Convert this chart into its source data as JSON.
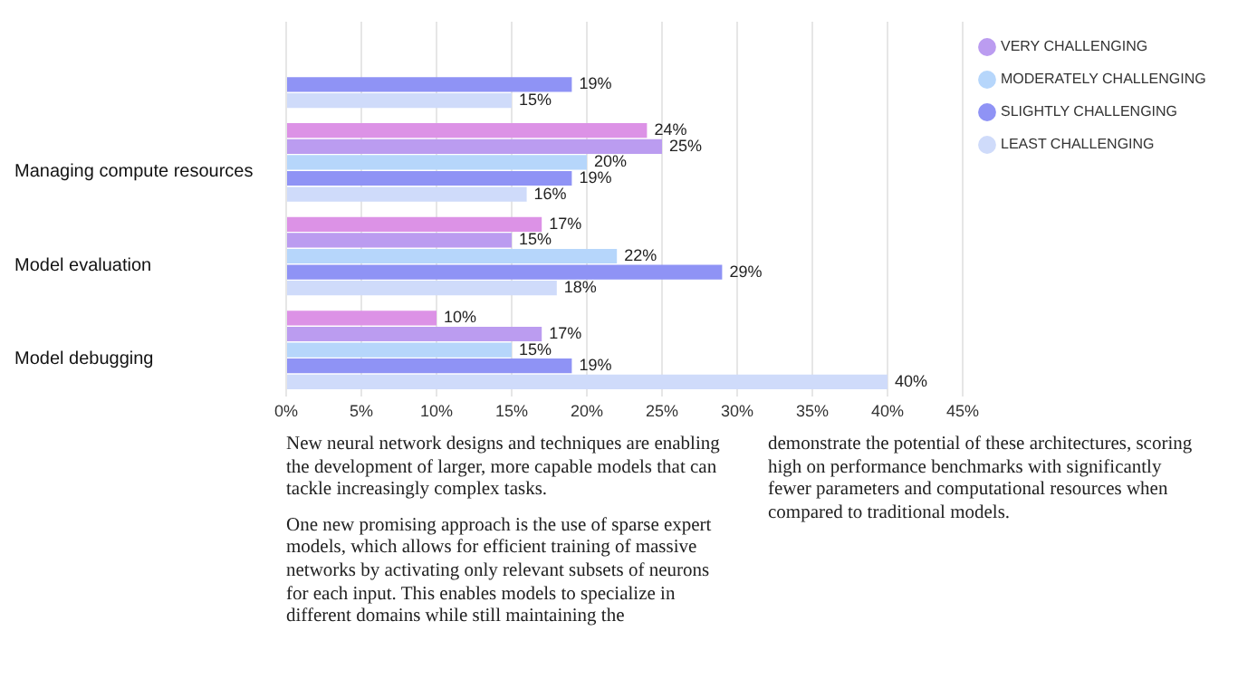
{
  "chart_data": {
    "type": "bar",
    "orientation": "horizontal",
    "categories": [
      null,
      "Managing compute resources",
      "Model evaluation",
      "Model debugging"
    ],
    "series": [
      {
        "color": "#dc92e6",
        "values": [
          null,
          24,
          17,
          10
        ],
        "value_labels": [
          null,
          "24%",
          "17%",
          "10%"
        ]
      },
      {
        "name": "VERY CHALLENGING",
        "color": "#bb9cf0",
        "values": [
          null,
          25,
          15,
          17
        ],
        "value_labels": [
          null,
          "25%",
          "15%",
          "17%"
        ]
      },
      {
        "name": "MODERATELY CHALLENGING",
        "color": "#b6d6fb",
        "values": [
          null,
          20,
          22,
          15
        ],
        "value_labels": [
          null,
          "20%",
          "22%",
          "15%"
        ]
      },
      {
        "name": "SLIGHTLY CHALLENGING",
        "color": "#8f93f5",
        "values": [
          19,
          19,
          29,
          19
        ],
        "value_labels": [
          "19%",
          "19%",
          "29%",
          "19%"
        ]
      },
      {
        "name": "LEAST CHALLENGING",
        "color": "#cfdbfa",
        "values": [
          15,
          16,
          18,
          40
        ],
        "value_labels": [
          "15%",
          "16%",
          "18%",
          "40%"
        ]
      }
    ],
    "xlim": [
      0,
      45
    ],
    "xticks": [
      {
        "value": 0,
        "label": "0%"
      },
      {
        "value": 5,
        "label": "5%"
      },
      {
        "value": 10,
        "label": "10%"
      },
      {
        "value": 15,
        "label": "15%"
      },
      {
        "value": 20,
        "label": "20%"
      },
      {
        "value": 25,
        "label": "25%"
      },
      {
        "value": 30,
        "label": "30%"
      },
      {
        "value": 35,
        "label": "35%"
      },
      {
        "value": 40,
        "label": "40%"
      },
      {
        "value": 45,
        "label": "45%"
      }
    ],
    "grid": "x",
    "legend": "top right",
    "annotations": [
      "New neural network designs and techniques are enabling the development of larger, more capable models that can tackle increasingly complex tasks.",
      "One new promising approach is the use of sparse expert models, which allows for efficient training of massive networks by activating only relevant subsets of neurons for each input. This enables models to specialize in different domains while still maintaining the",
      "demonstrate the potential of these architectures, scoring high on performance benchmarks with significantly fewer parameters and computational resources when compared to traditional models."
    ]
  }
}
